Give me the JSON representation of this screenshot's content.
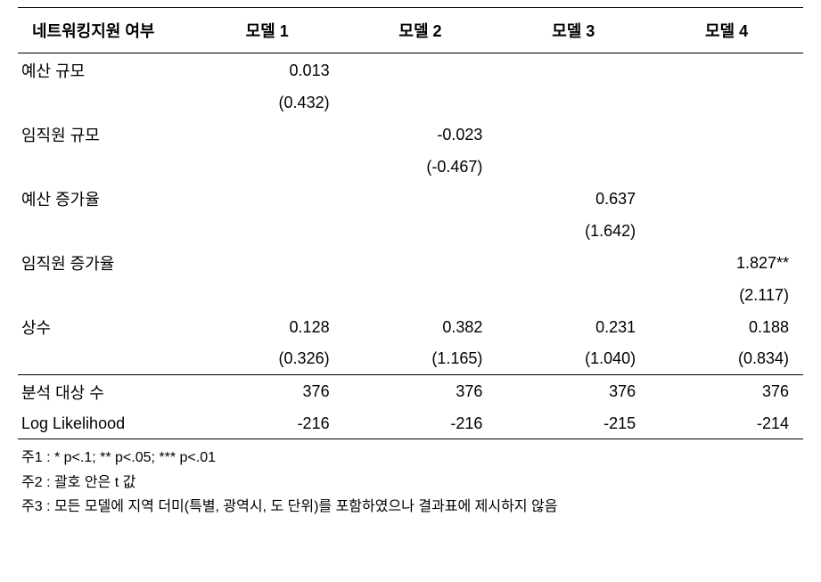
{
  "table": {
    "type": "table",
    "background_color": "#ffffff",
    "text_color": "#000000",
    "border_color": "#000000",
    "header_fontsize": 18,
    "body_fontsize": 18,
    "columns": [
      "네트워킹지원 여부",
      "모델 1",
      "모델 2",
      "모델 3",
      "모델 4"
    ],
    "rows": {
      "budget_scale": {
        "label": "예산 규모",
        "m1_val": "0.013",
        "m1_paren": "(0.432)",
        "m2_val": "",
        "m2_paren": "",
        "m3_val": "",
        "m3_paren": "",
        "m4_val": "",
        "m4_paren": ""
      },
      "employee_scale": {
        "label": "임직원 규모",
        "m1_val": "",
        "m1_paren": "",
        "m2_val": "-0.023",
        "m2_paren": "(-0.467)",
        "m3_val": "",
        "m3_paren": "",
        "m4_val": "",
        "m4_paren": ""
      },
      "budget_growth": {
        "label": "예산 증가율",
        "m1_val": "",
        "m1_paren": "",
        "m2_val": "",
        "m2_paren": "",
        "m3_val": "0.637",
        "m3_paren": "(1.642)",
        "m4_val": "",
        "m4_paren": ""
      },
      "employee_growth": {
        "label": "임직원 증가율",
        "m1_val": "",
        "m1_paren": "",
        "m2_val": "",
        "m2_paren": "",
        "m3_val": "",
        "m3_paren": "",
        "m4_val": "1.827**",
        "m4_paren": "(2.117)"
      },
      "constant": {
        "label": "상수",
        "m1_val": "0.128",
        "m1_paren": "(0.326)",
        "m2_val": "0.382",
        "m2_paren": "(1.165)",
        "m3_val": "0.231",
        "m3_paren": "(1.040)",
        "m4_val": "0.188",
        "m4_paren": "(0.834)"
      },
      "obs_count": {
        "label": "분석 대상 수",
        "m1": "376",
        "m2": "376",
        "m3": "376",
        "m4": "376"
      },
      "log_likelihood": {
        "label": "Log Likelihood",
        "m1": "-216",
        "m2": "-216",
        "m3": "-215",
        "m4": "-214"
      }
    }
  },
  "notes": {
    "note1": "주1 : * p<.1; ** p<.05; *** p<.01",
    "note2": "주2 : 괄호 안은 t 값",
    "note3": "주3 : 모든 모델에 지역 더미(특별, 광역시, 도 단위)를 포함하였으나 결과표에 제시하지 않음",
    "fontsize": 16
  }
}
